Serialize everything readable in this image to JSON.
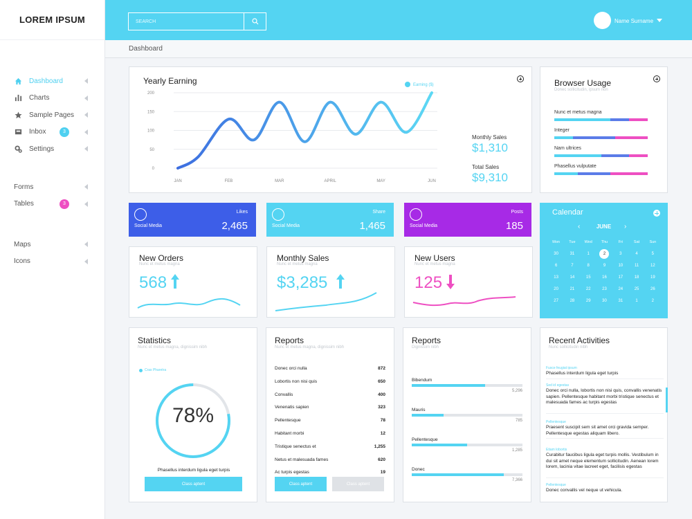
{
  "app": {
    "logo": "LOREM IPSUM"
  },
  "sidebar": {
    "items": [
      {
        "label": "Dashboard",
        "icon": "home-icon",
        "active": true
      },
      {
        "label": "Charts",
        "icon": "bar-chart-icon"
      },
      {
        "label": "Sample Pages",
        "icon": "star-icon"
      },
      {
        "label": "Inbox",
        "icon": "inbox-icon",
        "badge": "3"
      },
      {
        "label": "Settings",
        "icon": "gear-icon"
      },
      {
        "label": "Forms"
      },
      {
        "label": "Tables",
        "badge": "3"
      },
      {
        "label": "Maps"
      },
      {
        "label": "Icons"
      }
    ]
  },
  "header": {
    "search_placeholder": "SEARCH",
    "user_name": "Name Surname"
  },
  "breadcrumb": "Dashboard",
  "yearly": {
    "title": "Yearly Earning",
    "legend": "Earning ($)",
    "monthly_label": "Monthly Sales",
    "monthly_value": "$1,310",
    "total_label": "Total Sales",
    "total_value": "$9,310"
  },
  "chart_data": {
    "type": "line",
    "title": "Yearly Earning",
    "categories": [
      "JAN",
      "FEB",
      "MAR",
      "APRIL",
      "MAY",
      "JUN"
    ],
    "yticks": [
      0,
      50,
      100,
      150,
      200
    ],
    "ylim": [
      0,
      200
    ],
    "series": [
      {
        "name": "Earning ($)",
        "x": [
          0,
          0.4,
          1.0,
          1.5,
          2.0,
          2.5,
          3.0,
          3.5,
          4.0,
          4.5,
          5.0
        ],
        "values": [
          0,
          30,
          130,
          75,
          175,
          70,
          175,
          90,
          175,
          95,
          200
        ]
      }
    ],
    "legend": "top-right",
    "grid": true
  },
  "browser": {
    "title": "Browser Usage",
    "subtitle": "Donec sollicitudin, ipsum non",
    "items": [
      {
        "label": "Nunc et metus magna",
        "segments": [
          0.6,
          0.2,
          0.2
        ]
      },
      {
        "label": "Integer",
        "segments": [
          0.2,
          0.45,
          0.35
        ]
      },
      {
        "label": "Nam ultrices",
        "segments": [
          0.5,
          0.3,
          0.2
        ]
      },
      {
        "label": "Phasellus vulputate",
        "segments": [
          0.25,
          0.35,
          0.4
        ]
      }
    ],
    "colors": [
      "#54d4f2",
      "#5b7ce8",
      "#ee4fc2"
    ]
  },
  "social": [
    {
      "label": "Social Media",
      "category": "Likes",
      "value": "2,465",
      "color": "#3d5ee8"
    },
    {
      "label": "Social Media",
      "category": "Share",
      "value": "1,465",
      "color": "#54d4f2"
    },
    {
      "label": "Social Media",
      "category": "Posts",
      "value": "185",
      "color": "#a72ae6"
    }
  ],
  "calendar": {
    "title": "Calendar",
    "month": "JUNE",
    "days": [
      "Mon",
      "Tue",
      "Wed",
      "Thu",
      "Fri",
      "Sat",
      "Sun"
    ],
    "dates": [
      "30",
      "31",
      "1",
      "2",
      "3",
      "4",
      "5",
      "6",
      "7",
      "8",
      "9",
      "10",
      "11",
      "12",
      "13",
      "14",
      "15",
      "16",
      "17",
      "18",
      "19",
      "20",
      "21",
      "22",
      "23",
      "24",
      "25",
      "26",
      "27",
      "28",
      "29",
      "30",
      "31",
      "1",
      "2"
    ],
    "today": "2"
  },
  "stats": [
    {
      "title": "New Orders",
      "subtitle": "Nunc et metus magna",
      "value": "568",
      "direction": "up",
      "color": "#54d4f2"
    },
    {
      "title": "Monthly Sales",
      "subtitle": "Nunc et metus magna",
      "value": "$3,285",
      "direction": "up",
      "color": "#54d4f2"
    },
    {
      "title": "New Users",
      "subtitle": "Nunc et metus magna",
      "value": "125",
      "direction": "down",
      "color": "#ee4fc2"
    }
  ],
  "statistics": {
    "title": "Statistics",
    "subtitle": "Nunc et metus magna, dignissim nibh",
    "legend": "Cras Pharetra",
    "percent": "78%",
    "fraction": 0.78,
    "caption": "Phasellus interdum ligula eget turpis",
    "button": "Class aptent"
  },
  "reports_list": {
    "title": "Reports",
    "subtitle": "Nunc et metus magna, dignissim nibh",
    "rows": [
      {
        "label": "Donec orci nulla",
        "value": "872"
      },
      {
        "label": "Lobortis non nisi quis",
        "value": "650"
      },
      {
        "label": "Convallis",
        "value": "400"
      },
      {
        "label": "Venenatis sapien",
        "value": "323"
      },
      {
        "label": "Pellentesque",
        "value": "78"
      },
      {
        "label": "Habitant morbi",
        "value": "12"
      },
      {
        "label": "Tristique senectus et",
        "value": "1,255"
      },
      {
        "label": "Netus et malesuada fames",
        "value": "620"
      },
      {
        "label": "Ac turpis egestas",
        "value": "19"
      }
    ],
    "button_primary": "Class aptent",
    "button_secondary": "Class aptent"
  },
  "reports_bars": {
    "title": "Reports",
    "subtitle": "Dignissim nibh",
    "items": [
      {
        "label": "Bibendum",
        "value": "5,296",
        "fraction": 0.66
      },
      {
        "label": "Mauris",
        "value": "785",
        "fraction": 0.29
      },
      {
        "label": "Pellentesque",
        "value": "1,285",
        "fraction": 0.5
      },
      {
        "label": "Donec",
        "value": "7,366",
        "fraction": 0.83
      }
    ]
  },
  "activities": {
    "title": "Recent Activities",
    "subtitle": "Nunc sollicitudin nibh",
    "items": [
      {
        "date": "Fusce feugiat ipsum",
        "text": "Phasellus interdum ligula eget turpis"
      },
      {
        "date": "Sed id egestas",
        "text": "Donec orci nulla, lobortis non nisi quis, convallis venenatis sapien. Pellentesque habitant morbi tristique senectus et malesuada fames ac turpis egestas"
      },
      {
        "date": "Pellentesque",
        "text": "Praesent suscipit sem sit amet orci gravida semper. Pellentesque egestas aliquam libero."
      },
      {
        "date": "Etiam lobortis",
        "text": "Curabitur faucibus ligula eget turpis mollis. Vestibulum in dui sit amet neque elementum sollicitudin. Aenean lorem lorem, lacinia vitae lacreet eget, facilisis egestas"
      },
      {
        "date": "Pellentesque",
        "text": "Donec convallis vel neque ut vehicula."
      }
    ]
  }
}
